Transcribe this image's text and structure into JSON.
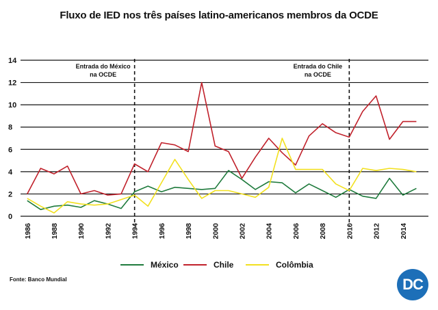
{
  "chart_data": {
    "type": "line",
    "title": "Fluxo de IED nos três países latino-americanos membros da OCDE",
    "xlabel": "",
    "ylabel": "",
    "ylim": [
      0,
      14
    ],
    "yticks": [
      0,
      2,
      4,
      6,
      8,
      10,
      12,
      14
    ],
    "xlim": [
      1985.5,
      2015.9
    ],
    "xticks": [
      1986,
      1988,
      1990,
      1992,
      1994,
      1996,
      1998,
      2000,
      2002,
      2004,
      2006,
      2008,
      2010,
      2012,
      2014
    ],
    "grid": "horizontal",
    "legend_position": "bottom",
    "x": [
      1986,
      1987,
      1988,
      1989,
      1990,
      1991,
      1992,
      1993,
      1994,
      1995,
      1996,
      1997,
      1998,
      1999,
      2000,
      2001,
      2002,
      2003,
      2004,
      2005,
      2006,
      2007,
      2008,
      2009,
      2010,
      2011,
      2012,
      2013,
      2014,
      2015
    ],
    "series": [
      {
        "name": "México",
        "color": "#1e7a3c",
        "values": [
          1.4,
          0.6,
          0.9,
          1.0,
          0.8,
          1.4,
          1.1,
          0.7,
          2.2,
          2.7,
          2.2,
          2.6,
          2.5,
          2.4,
          2.5,
          4.1,
          3.3,
          2.4,
          3.1,
          3.0,
          2.1,
          2.9,
          2.3,
          1.7,
          2.4,
          1.8,
          1.6,
          3.4,
          1.9,
          2.5
        ]
      },
      {
        "name": "Chile",
        "color": "#c0202a",
        "values": [
          2.0,
          4.3,
          3.8,
          4.5,
          2.0,
          2.3,
          1.9,
          2.0,
          4.7,
          4.0,
          6.6,
          6.4,
          5.8,
          12.0,
          6.3,
          5.8,
          3.4,
          5.3,
          7.0,
          5.7,
          4.6,
          7.2,
          8.3,
          7.5,
          7.1,
          9.4,
          10.8,
          6.9,
          8.5,
          8.5
        ]
      },
      {
        "name": "Colômbia",
        "color": "#f2e01e",
        "values": [
          1.6,
          0.9,
          0.3,
          1.3,
          1.1,
          1.0,
          1.1,
          1.5,
          1.9,
          0.9,
          3.0,
          5.1,
          3.3,
          1.6,
          2.3,
          2.3,
          2.0,
          1.7,
          2.6,
          7.0,
          4.2,
          4.2,
          4.2,
          2.9,
          2.3,
          4.3,
          4.1,
          4.3,
          4.2,
          4.0
        ]
      }
    ],
    "annotations": [
      {
        "x": 1994,
        "text": [
          "Entrada do México",
          "na OCDE"
        ]
      },
      {
        "x": 2010,
        "text": [
          "Entrada do Chile",
          "na OCDE"
        ]
      }
    ]
  },
  "footer": {
    "source": "Fonte: Banco Mundial",
    "logo_text": "DC"
  }
}
